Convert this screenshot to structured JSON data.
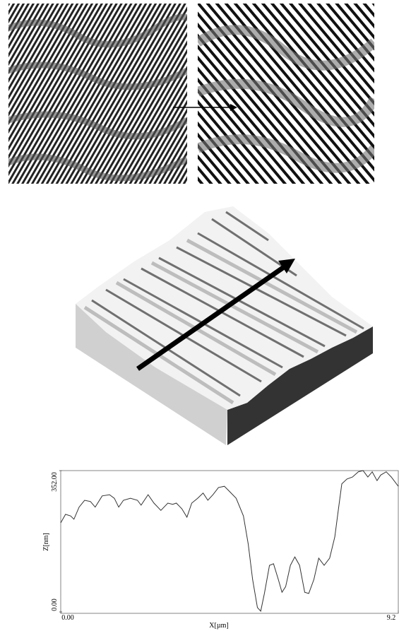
{
  "chart_data": {
    "type": "line",
    "xlabel": "X[µm]",
    "ylabel": "Z[nm]",
    "xlim": [
      0,
      9.2
    ],
    "ylim": [
      0,
      352
    ],
    "xticks": [
      {
        "value": 0,
        "label": "0.00"
      },
      9.2
    ],
    "yticks": [
      {
        "value": 0,
        "label": "0.00"
      },
      {
        "value": 352,
        "label": "352.00"
      }
    ],
    "color": "#333333",
    "x": [
      0,
      0.13,
      0.27,
      0.36,
      0.5,
      0.65,
      0.81,
      0.94,
      1.13,
      1.33,
      1.46,
      1.58,
      1.71,
      1.9,
      2.09,
      2.19,
      2.38,
      2.54,
      2.73,
      2.92,
      3.05,
      3.15,
      3.3,
      3.44,
      3.57,
      3.73,
      3.88,
      4.01,
      4.15,
      4.3,
      4.46,
      4.59,
      4.78,
      4.98,
      5.11,
      5.23,
      5.36,
      5.45,
      5.55,
      5.69,
      5.8,
      5.93,
      6.03,
      6.13,
      6.26,
      6.38,
      6.51,
      6.65,
      6.76,
      6.9,
      7.03,
      7.18,
      7.33,
      7.47,
      7.57,
      7.66,
      7.8,
      7.95,
      8.11,
      8.24,
      8.37,
      8.49,
      8.62,
      8.72,
      8.87,
      9.01,
      9.2
    ],
    "values": [
      222,
      243,
      239,
      231,
      261,
      278,
      275,
      261,
      289,
      292,
      283,
      261,
      278,
      283,
      278,
      266,
      292,
      271,
      253,
      271,
      268,
      271,
      257,
      236,
      271,
      283,
      296,
      278,
      292,
      310,
      313,
      301,
      283,
      239,
      169,
      81,
      11,
      2,
      46,
      116,
      120,
      81,
      49,
      63,
      116,
      137,
      116,
      49,
      46,
      81,
      134,
      116,
      134,
      187,
      257,
      319,
      331,
      336,
      349,
      352,
      336,
      349,
      327,
      341,
      349,
      336,
      313
    ]
  }
}
